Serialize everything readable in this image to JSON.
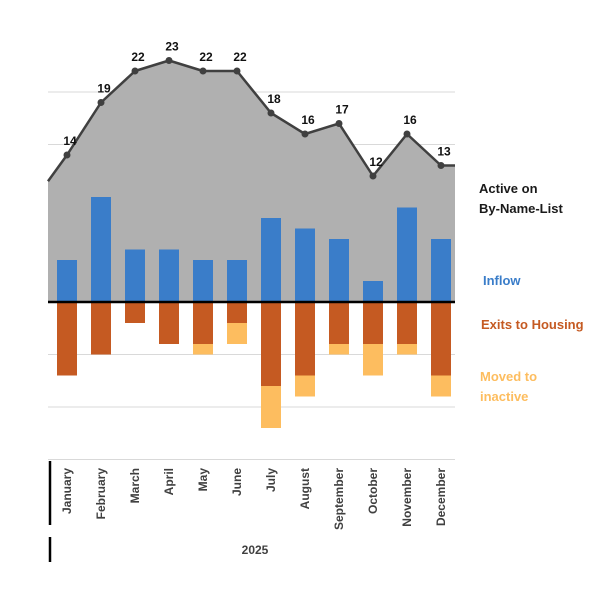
{
  "chart_data": {
    "type": "bar",
    "categories": [
      "January",
      "February",
      "March",
      "April",
      "May",
      "June",
      "July",
      "August",
      "September",
      "October",
      "November",
      "December"
    ],
    "group_label": "2025",
    "ylim": [
      -12,
      25
    ],
    "grid": true,
    "series": [
      {
        "name": "Active on By-Name-List",
        "kind": "area+line",
        "color": "#b0b0b0",
        "line_color": "#404040",
        "values": [
          14,
          19,
          22,
          23,
          22,
          22,
          18,
          16,
          17,
          12,
          16,
          13
        ],
        "data_labels": [
          "14",
          "19",
          "22",
          "23",
          "22",
          "22",
          "18",
          "16",
          "17",
          "12",
          "16",
          "13"
        ]
      },
      {
        "name": "Inflow",
        "kind": "bar",
        "color": "#3a7dc9",
        "values": [
          4,
          10,
          5,
          5,
          4,
          4,
          8,
          7,
          6,
          2,
          9,
          6
        ]
      },
      {
        "name": "Exits to Housing",
        "kind": "bar",
        "color": "#c55a22",
        "values": [
          -7,
          -5,
          -2,
          -4,
          -4,
          -2,
          -8,
          -7,
          -4,
          -4,
          -4,
          -7
        ]
      },
      {
        "name": "Moved to inactive",
        "kind": "bar-stacked",
        "color": "#fdbd5f",
        "values": [
          0,
          0,
          0,
          0,
          -1,
          -2,
          -4,
          -2,
          -1,
          -3,
          -1,
          -2
        ]
      }
    ],
    "legend": {
      "placement": "right",
      "active_lines": [
        "Active on",
        "By-Name-List"
      ],
      "inflow": "Inflow",
      "exits": "Exits to Housing",
      "moved_lines": [
        "Moved to",
        "inactive"
      ]
    }
  },
  "colors": {
    "inflow": "#3a7dc9",
    "exits": "#c55a22",
    "moved": "#fdbd5f",
    "area": "#b0b0b0",
    "line": "#404040"
  }
}
